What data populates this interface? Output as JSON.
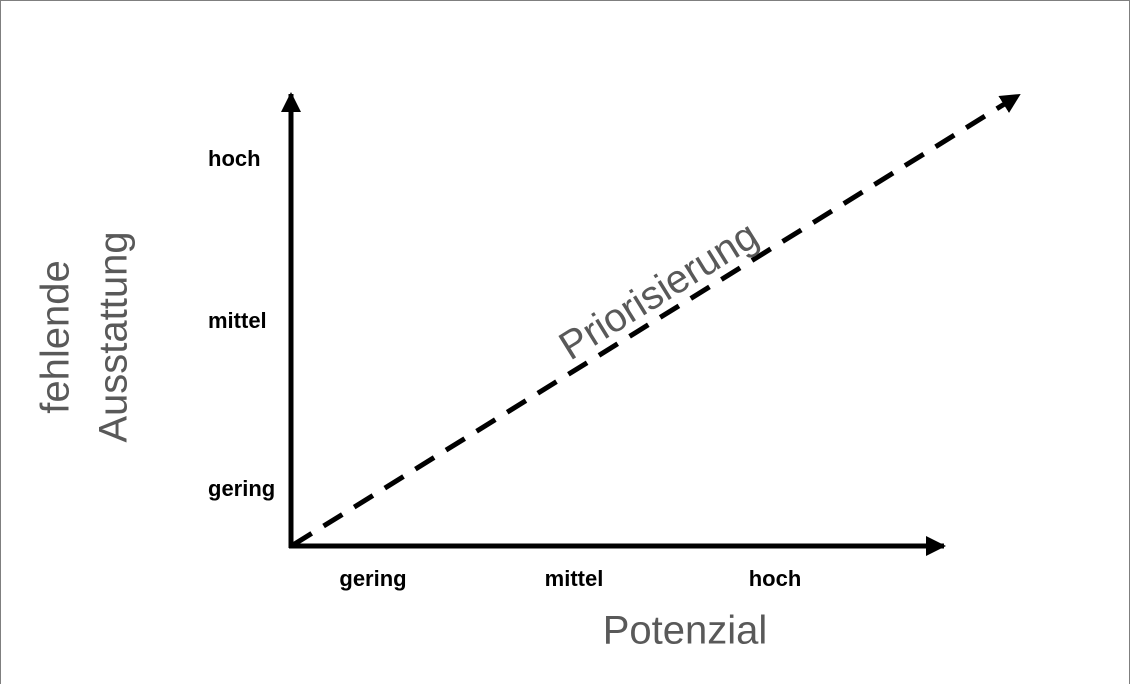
{
  "y_axis": {
    "label": [
      "fehlende",
      "Ausstattung"
    ],
    "ticks": [
      "hoch",
      "mittel",
      "gering"
    ]
  },
  "x_axis": {
    "label": "Potenzial",
    "ticks": [
      "gering",
      "mittel",
      "hoch"
    ]
  },
  "arrow_label": "Priorisierung"
}
